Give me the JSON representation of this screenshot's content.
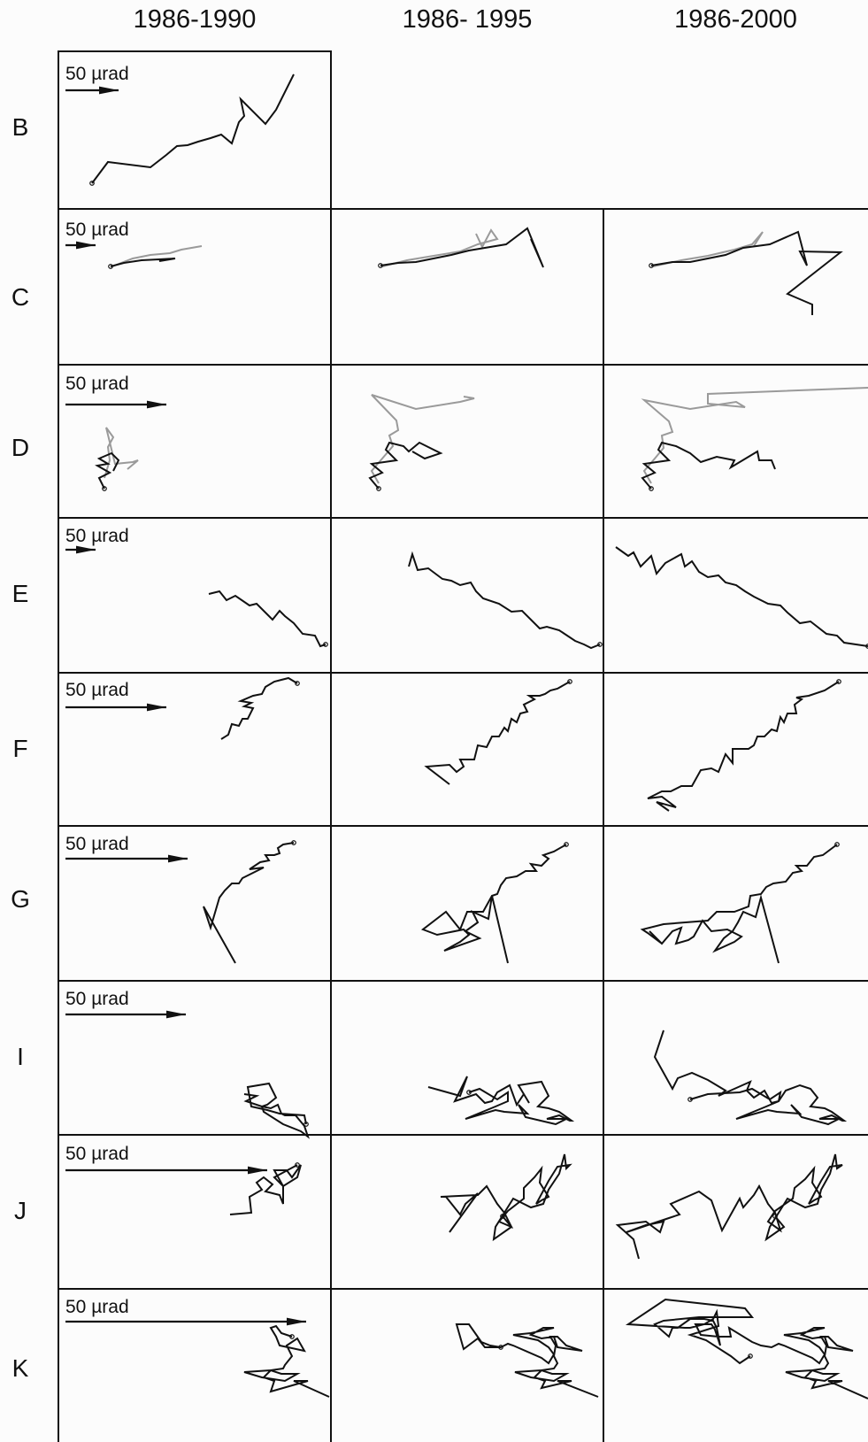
{
  "column_headers": [
    "1986-1990",
    "1986- 1995",
    "1986-2000"
  ],
  "row_labels": [
    "B",
    "C",
    "D",
    "E",
    "F",
    "G",
    "I",
    "J",
    "K"
  ],
  "scale_label": "50 µrad",
  "colors": {
    "primary_trace": "#111111",
    "secondary_trace": "#9a9a9a",
    "grid": "#111111",
    "background": "#fcfcfc"
  },
  "panels": [
    {
      "row": "B",
      "columns": [
        "1986-1990"
      ]
    },
    {
      "row": "C",
      "columns": [
        "1986-1990",
        "1986- 1995",
        "1986-2000"
      ],
      "traces": [
        "black",
        "gray"
      ]
    },
    {
      "row": "D",
      "columns": [
        "1986-1990",
        "1986- 1995",
        "1986-2000"
      ],
      "traces": [
        "black",
        "gray"
      ]
    },
    {
      "row": "E",
      "columns": [
        "1986-1990",
        "1986- 1995",
        "1986-2000"
      ],
      "traces": [
        "black"
      ]
    },
    {
      "row": "F",
      "columns": [
        "1986-1990",
        "1986- 1995",
        "1986-2000"
      ],
      "traces": [
        "black"
      ]
    },
    {
      "row": "G",
      "columns": [
        "1986-1990",
        "1986- 1995",
        "1986-2000"
      ],
      "traces": [
        "black"
      ]
    },
    {
      "row": "I",
      "columns": [
        "1986-1990",
        "1986- 1995",
        "1986-2000"
      ],
      "traces": [
        "black"
      ]
    },
    {
      "row": "J",
      "columns": [
        "1986-1990",
        "1986- 1995",
        "1986-2000"
      ],
      "traces": [
        "black"
      ]
    },
    {
      "row": "K",
      "columns": [
        "1986-1990",
        "1986- 1995",
        "1986-2000"
      ],
      "traces": [
        "black"
      ]
    }
  ]
}
